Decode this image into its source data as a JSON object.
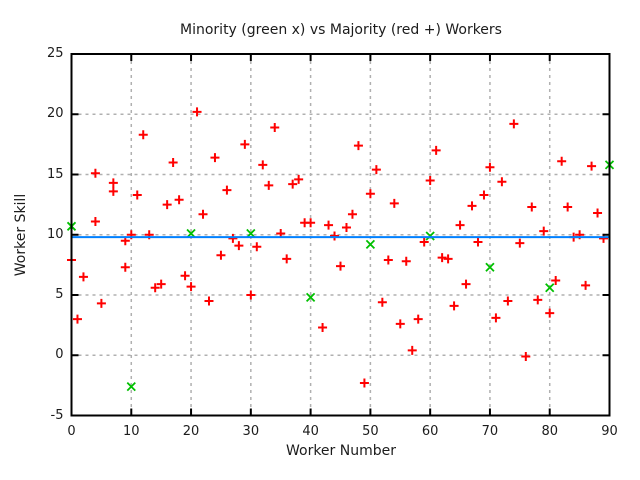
{
  "figure": {
    "background": "#ffffff",
    "border_color": "#000000",
    "grid_color": "#b0b0b0",
    "text_color": "#1c1c1c"
  },
  "chart_data": {
    "type": "scatter",
    "title": "Minority (green x) vs Majority (red +) Workers",
    "xlabel": "Worker Number",
    "ylabel": "Worker Skill",
    "xlim": [
      0,
      90
    ],
    "ylim": [
      -5,
      25
    ],
    "x_ticks": [
      0,
      10,
      20,
      30,
      40,
      50,
      60,
      70,
      80,
      90
    ],
    "y_ticks": [
      -5,
      0,
      5,
      10,
      15,
      20,
      25
    ],
    "grid": true,
    "legend_position": "none",
    "series": [
      {
        "name": "Majority (red +)",
        "marker": "plus",
        "color": "#ff0000",
        "points": [
          [
            0,
            7.9
          ],
          [
            1,
            3.0
          ],
          [
            2,
            6.5
          ],
          [
            4,
            11.1
          ],
          [
            4,
            15.1
          ],
          [
            5,
            4.3
          ],
          [
            7,
            13.6
          ],
          [
            7,
            14.3
          ],
          [
            9,
            9.5
          ],
          [
            9,
            7.3
          ],
          [
            10,
            10.0
          ],
          [
            11,
            13.3
          ],
          [
            12,
            18.3
          ],
          [
            13,
            10.0
          ],
          [
            14,
            5.6
          ],
          [
            15,
            5.9
          ],
          [
            16,
            12.5
          ],
          [
            17,
            16.0
          ],
          [
            18,
            12.9
          ],
          [
            19,
            6.6
          ],
          [
            20,
            5.7
          ],
          [
            21,
            20.2
          ],
          [
            22,
            11.7
          ],
          [
            23,
            4.5
          ],
          [
            24,
            16.4
          ],
          [
            25,
            8.3
          ],
          [
            26,
            13.7
          ],
          [
            27,
            9.7
          ],
          [
            28,
            9.1
          ],
          [
            29,
            17.5
          ],
          [
            30,
            5.0
          ],
          [
            31,
            9.0
          ],
          [
            32,
            15.8
          ],
          [
            33,
            14.1
          ],
          [
            34,
            18.9
          ],
          [
            35,
            10.1
          ],
          [
            36,
            8.0
          ],
          [
            37,
            14.2
          ],
          [
            38,
            14.6
          ],
          [
            39,
            11.0
          ],
          [
            40,
            11.0
          ],
          [
            42,
            2.3
          ],
          [
            43,
            10.8
          ],
          [
            44,
            9.9
          ],
          [
            45,
            7.4
          ],
          [
            46,
            10.6
          ],
          [
            47,
            11.7
          ],
          [
            48,
            17.4
          ],
          [
            49,
            -2.3
          ],
          [
            50,
            13.4
          ],
          [
            51,
            15.4
          ],
          [
            52,
            4.4
          ],
          [
            53,
            7.9
          ],
          [
            54,
            12.6
          ],
          [
            55,
            2.6
          ],
          [
            56,
            7.8
          ],
          [
            57,
            0.4
          ],
          [
            58,
            3.0
          ],
          [
            59,
            9.4
          ],
          [
            60,
            14.5
          ],
          [
            61,
            17.0
          ],
          [
            62,
            8.1
          ],
          [
            63,
            8.0
          ],
          [
            64,
            4.1
          ],
          [
            65,
            10.8
          ],
          [
            66,
            5.9
          ],
          [
            67,
            12.4
          ],
          [
            68,
            9.4
          ],
          [
            69,
            13.3
          ],
          [
            70,
            15.6
          ],
          [
            71,
            3.1
          ],
          [
            72,
            14.4
          ],
          [
            73,
            4.5
          ],
          [
            74,
            19.2
          ],
          [
            75,
            9.3
          ],
          [
            76,
            -0.1
          ],
          [
            77,
            12.3
          ],
          [
            78,
            4.6
          ],
          [
            79,
            10.3
          ],
          [
            80,
            3.5
          ],
          [
            81,
            6.2
          ],
          [
            82,
            16.1
          ],
          [
            83,
            12.3
          ],
          [
            84,
            9.8
          ],
          [
            85,
            10.0
          ],
          [
            86,
            5.8
          ],
          [
            87,
            15.7
          ],
          [
            88,
            11.8
          ],
          [
            89,
            9.7
          ]
        ]
      },
      {
        "name": "Minority (green x)",
        "marker": "x",
        "color": "#00c000",
        "points": [
          [
            0,
            10.7
          ],
          [
            10,
            -2.6
          ],
          [
            20,
            10.1
          ],
          [
            30,
            10.1
          ],
          [
            40,
            4.8
          ],
          [
            50,
            9.2
          ],
          [
            60,
            9.9
          ],
          [
            70,
            7.3
          ],
          [
            80,
            5.6
          ],
          [
            90,
            15.8
          ]
        ]
      },
      {
        "name": "average skill line",
        "marker": "hline",
        "color": "#0080ff",
        "y": 9.8
      }
    ]
  }
}
